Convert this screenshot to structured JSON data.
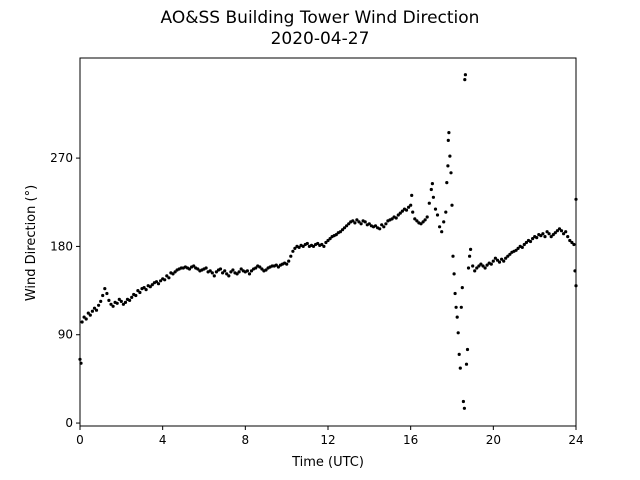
{
  "chart_data": {
    "type": "scatter",
    "title": "AO&SS Building Tower Wind Direction",
    "subtitle": "2020-04-27",
    "xlabel": "Time (UTC)",
    "ylabel": "Wind Direction (°)",
    "xlim": [
      0,
      24
    ],
    "ylim": [
      -3,
      372
    ],
    "xticks": [
      0,
      4,
      8,
      12,
      16,
      20,
      24
    ],
    "yticks": [
      0,
      90,
      180,
      270
    ],
    "grid": false,
    "marker_color": "#000000",
    "series": [
      {
        "points": [
          [
            0.0,
            65
          ],
          [
            0.05,
            61
          ],
          [
            0.1,
            103
          ],
          [
            0.2,
            108
          ],
          [
            0.3,
            106
          ],
          [
            0.4,
            112
          ],
          [
            0.5,
            110
          ],
          [
            0.6,
            114
          ],
          [
            0.7,
            117
          ],
          [
            0.8,
            115
          ],
          [
            0.9,
            120
          ],
          [
            1.0,
            124
          ],
          [
            1.1,
            130
          ],
          [
            1.2,
            137
          ],
          [
            1.3,
            132
          ],
          [
            1.4,
            125
          ],
          [
            1.5,
            121
          ],
          [
            1.6,
            119
          ],
          [
            1.7,
            123
          ],
          [
            1.8,
            122
          ],
          [
            1.9,
            126
          ],
          [
            2.0,
            124
          ],
          [
            2.1,
            121
          ],
          [
            2.2,
            123
          ],
          [
            2.3,
            126
          ],
          [
            2.4,
            125
          ],
          [
            2.5,
            128
          ],
          [
            2.6,
            131
          ],
          [
            2.7,
            130
          ],
          [
            2.8,
            135
          ],
          [
            2.9,
            133
          ],
          [
            3.0,
            137
          ],
          [
            3.1,
            138
          ],
          [
            3.2,
            136
          ],
          [
            3.3,
            140
          ],
          [
            3.4,
            139
          ],
          [
            3.5,
            141
          ],
          [
            3.6,
            143
          ],
          [
            3.7,
            144
          ],
          [
            3.8,
            142
          ],
          [
            3.9,
            145
          ],
          [
            4.0,
            147
          ],
          [
            4.1,
            146
          ],
          [
            4.2,
            150
          ],
          [
            4.3,
            148
          ],
          [
            4.4,
            153
          ],
          [
            4.5,
            152
          ],
          [
            4.6,
            154
          ],
          [
            4.7,
            156
          ],
          [
            4.8,
            157
          ],
          [
            4.9,
            158
          ],
          [
            5.0,
            158
          ],
          [
            5.1,
            159
          ],
          [
            5.2,
            158
          ],
          [
            5.3,
            157
          ],
          [
            5.4,
            159
          ],
          [
            5.5,
            160
          ],
          [
            5.6,
            158
          ],
          [
            5.7,
            157
          ],
          [
            5.8,
            155
          ],
          [
            5.9,
            156
          ],
          [
            6.0,
            157
          ],
          [
            6.1,
            158
          ],
          [
            6.2,
            154
          ],
          [
            6.3,
            155
          ],
          [
            6.4,
            153
          ],
          [
            6.5,
            150
          ],
          [
            6.6,
            154
          ],
          [
            6.7,
            156
          ],
          [
            6.8,
            157
          ],
          [
            6.9,
            153
          ],
          [
            7.0,
            155
          ],
          [
            7.1,
            152
          ],
          [
            7.2,
            150
          ],
          [
            7.3,
            154
          ],
          [
            7.4,
            156
          ],
          [
            7.5,
            153
          ],
          [
            7.6,
            152
          ],
          [
            7.7,
            154
          ],
          [
            7.8,
            157
          ],
          [
            7.9,
            155
          ],
          [
            8.0,
            154
          ],
          [
            8.1,
            155
          ],
          [
            8.2,
            152
          ],
          [
            8.3,
            155
          ],
          [
            8.4,
            157
          ],
          [
            8.5,
            158
          ],
          [
            8.6,
            160
          ],
          [
            8.7,
            159
          ],
          [
            8.8,
            157
          ],
          [
            8.9,
            155
          ],
          [
            9.0,
            156
          ],
          [
            9.1,
            158
          ],
          [
            9.2,
            159
          ],
          [
            9.3,
            160
          ],
          [
            9.4,
            160
          ],
          [
            9.5,
            161
          ],
          [
            9.6,
            159
          ],
          [
            9.7,
            161
          ],
          [
            9.8,
            162
          ],
          [
            9.9,
            163
          ],
          [
            10.0,
            162
          ],
          [
            10.1,
            165
          ],
          [
            10.2,
            170
          ],
          [
            10.3,
            175
          ],
          [
            10.4,
            178
          ],
          [
            10.5,
            180
          ],
          [
            10.6,
            179
          ],
          [
            10.7,
            181
          ],
          [
            10.8,
            180
          ],
          [
            10.9,
            182
          ],
          [
            11.0,
            183
          ],
          [
            11.1,
            180
          ],
          [
            11.2,
            181
          ],
          [
            11.3,
            180
          ],
          [
            11.4,
            182
          ],
          [
            11.5,
            183
          ],
          [
            11.6,
            181
          ],
          [
            11.7,
            182
          ],
          [
            11.8,
            180
          ],
          [
            11.9,
            184
          ],
          [
            12.0,
            186
          ],
          [
            12.1,
            188
          ],
          [
            12.2,
            190
          ],
          [
            12.3,
            191
          ],
          [
            12.4,
            192
          ],
          [
            12.5,
            194
          ],
          [
            12.6,
            195
          ],
          [
            12.7,
            197
          ],
          [
            12.8,
            199
          ],
          [
            12.9,
            201
          ],
          [
            13.0,
            203
          ],
          [
            13.1,
            205
          ],
          [
            13.2,
            206
          ],
          [
            13.3,
            204
          ],
          [
            13.4,
            207
          ],
          [
            13.5,
            205
          ],
          [
            13.6,
            203
          ],
          [
            13.7,
            206
          ],
          [
            13.8,
            205
          ],
          [
            13.9,
            202
          ],
          [
            14.0,
            203
          ],
          [
            14.1,
            201
          ],
          [
            14.2,
            200
          ],
          [
            14.3,
            201
          ],
          [
            14.4,
            199
          ],
          [
            14.5,
            198
          ],
          [
            14.6,
            202
          ],
          [
            14.7,
            200
          ],
          [
            14.8,
            203
          ],
          [
            14.9,
            206
          ],
          [
            15.0,
            207
          ],
          [
            15.1,
            208
          ],
          [
            15.2,
            210
          ],
          [
            15.3,
            209
          ],
          [
            15.4,
            212
          ],
          [
            15.5,
            214
          ],
          [
            15.6,
            216
          ],
          [
            15.7,
            218
          ],
          [
            15.8,
            217
          ],
          [
            15.9,
            220
          ],
          [
            16.0,
            222
          ],
          [
            16.05,
            232
          ],
          [
            16.1,
            215
          ],
          [
            16.2,
            208
          ],
          [
            16.3,
            206
          ],
          [
            16.4,
            204
          ],
          [
            16.5,
            203
          ],
          [
            16.6,
            205
          ],
          [
            16.7,
            207
          ],
          [
            16.8,
            210
          ],
          [
            16.9,
            224
          ],
          [
            17.0,
            238
          ],
          [
            17.05,
            244
          ],
          [
            17.1,
            230
          ],
          [
            17.2,
            218
          ],
          [
            17.3,
            212
          ],
          [
            17.4,
            200
          ],
          [
            17.5,
            195
          ],
          [
            17.6,
            205
          ],
          [
            17.7,
            215
          ],
          [
            17.75,
            245
          ],
          [
            17.8,
            262
          ],
          [
            17.82,
            288
          ],
          [
            17.85,
            296
          ],
          [
            17.9,
            272
          ],
          [
            17.95,
            255
          ],
          [
            18.0,
            222
          ],
          [
            18.05,
            170
          ],
          [
            18.1,
            152
          ],
          [
            18.15,
            132
          ],
          [
            18.2,
            118
          ],
          [
            18.25,
            108
          ],
          [
            18.3,
            92
          ],
          [
            18.35,
            70
          ],
          [
            18.4,
            56
          ],
          [
            18.45,
            118
          ],
          [
            18.5,
            138
          ],
          [
            18.55,
            22
          ],
          [
            18.6,
            15
          ],
          [
            18.62,
            350
          ],
          [
            18.65,
            355
          ],
          [
            18.7,
            60
          ],
          [
            18.75,
            75
          ],
          [
            18.8,
            158
          ],
          [
            18.85,
            170
          ],
          [
            18.9,
            177
          ],
          [
            19.0,
            160
          ],
          [
            19.1,
            155
          ],
          [
            19.2,
            158
          ],
          [
            19.3,
            160
          ],
          [
            19.4,
            162
          ],
          [
            19.5,
            160
          ],
          [
            19.6,
            158
          ],
          [
            19.7,
            161
          ],
          [
            19.8,
            163
          ],
          [
            19.9,
            162
          ],
          [
            20.0,
            165
          ],
          [
            20.1,
            168
          ],
          [
            20.2,
            166
          ],
          [
            20.3,
            164
          ],
          [
            20.4,
            167
          ],
          [
            20.5,
            165
          ],
          [
            20.6,
            168
          ],
          [
            20.7,
            170
          ],
          [
            20.8,
            172
          ],
          [
            20.9,
            174
          ],
          [
            21.0,
            175
          ],
          [
            21.1,
            176
          ],
          [
            21.2,
            178
          ],
          [
            21.3,
            180
          ],
          [
            21.4,
            179
          ],
          [
            21.5,
            182
          ],
          [
            21.6,
            184
          ],
          [
            21.7,
            186
          ],
          [
            21.8,
            185
          ],
          [
            21.9,
            188
          ],
          [
            22.0,
            190
          ],
          [
            22.1,
            189
          ],
          [
            22.2,
            192
          ],
          [
            22.3,
            191
          ],
          [
            22.4,
            193
          ],
          [
            22.5,
            190
          ],
          [
            22.6,
            195
          ],
          [
            22.7,
            193
          ],
          [
            22.8,
            190
          ],
          [
            22.9,
            192
          ],
          [
            23.0,
            194
          ],
          [
            23.1,
            196
          ],
          [
            23.2,
            198
          ],
          [
            23.3,
            196
          ],
          [
            23.4,
            193
          ],
          [
            23.5,
            195
          ],
          [
            23.6,
            190
          ],
          [
            23.7,
            186
          ],
          [
            23.8,
            184
          ],
          [
            23.9,
            182
          ],
          [
            23.95,
            155
          ],
          [
            24.0,
            228
          ],
          [
            24.0,
            140
          ]
        ]
      }
    ]
  }
}
